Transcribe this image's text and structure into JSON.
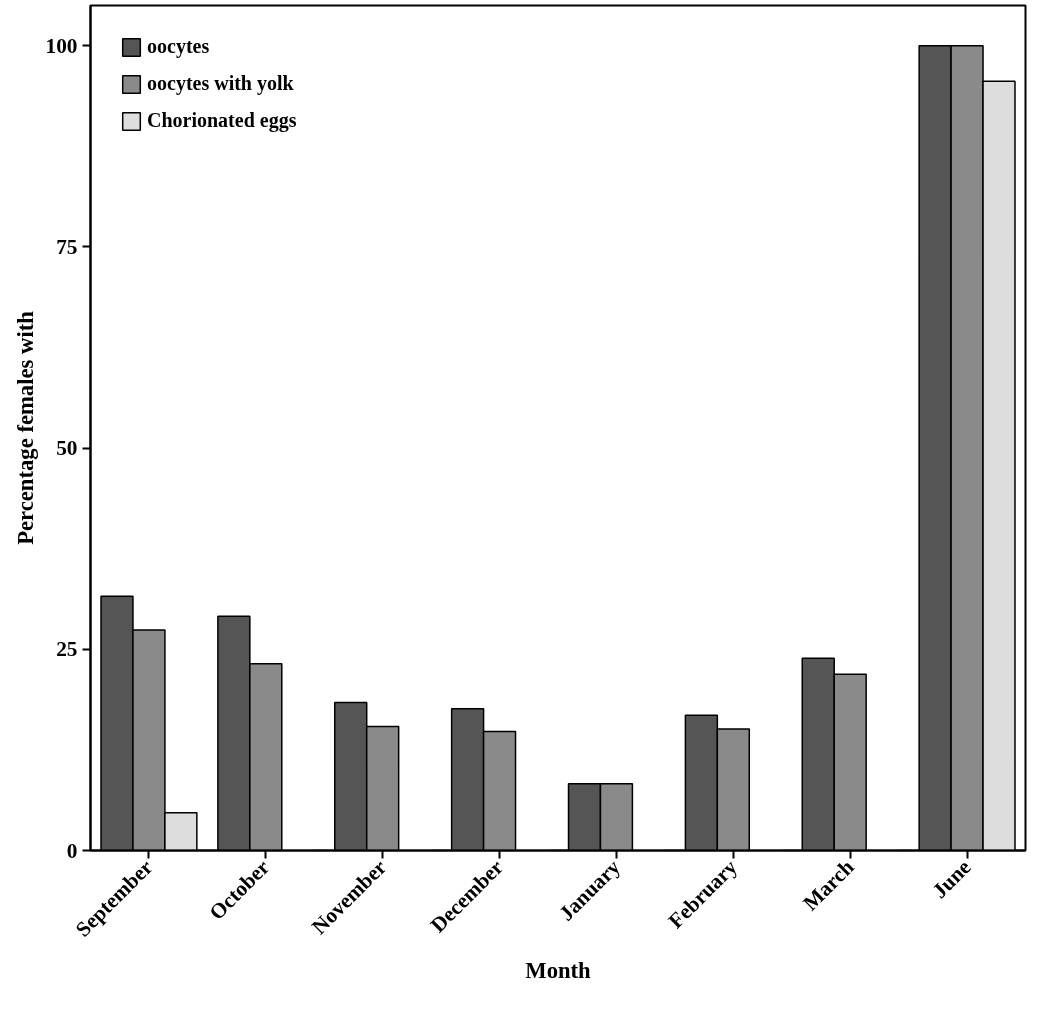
{
  "chart_data": {
    "type": "bar",
    "xlabel": "Month",
    "ylabel": "Percentage females with",
    "categories": [
      "September",
      "October",
      "November",
      "December",
      "January",
      "February",
      "March",
      "June"
    ],
    "series": [
      {
        "name": "oocytes",
        "color": "#555555",
        "values": [
          31.6,
          29.1,
          18.4,
          17.6,
          8.3,
          16.8,
          23.9,
          100
        ]
      },
      {
        "name": "oocytes with yolk",
        "color": "#8a8a8a",
        "values": [
          27.4,
          23.2,
          15.4,
          14.8,
          8.3,
          15.1,
          21.9,
          100
        ]
      },
      {
        "name": "Chorionated eggs",
        "color": "#dddddd",
        "values": [
          4.7,
          0,
          0,
          0,
          0,
          0,
          0,
          95.6
        ]
      }
    ],
    "ylim": [
      0,
      105
    ],
    "yticks": [
      0,
      25,
      50,
      75,
      100
    ],
    "legend": "top left"
  }
}
